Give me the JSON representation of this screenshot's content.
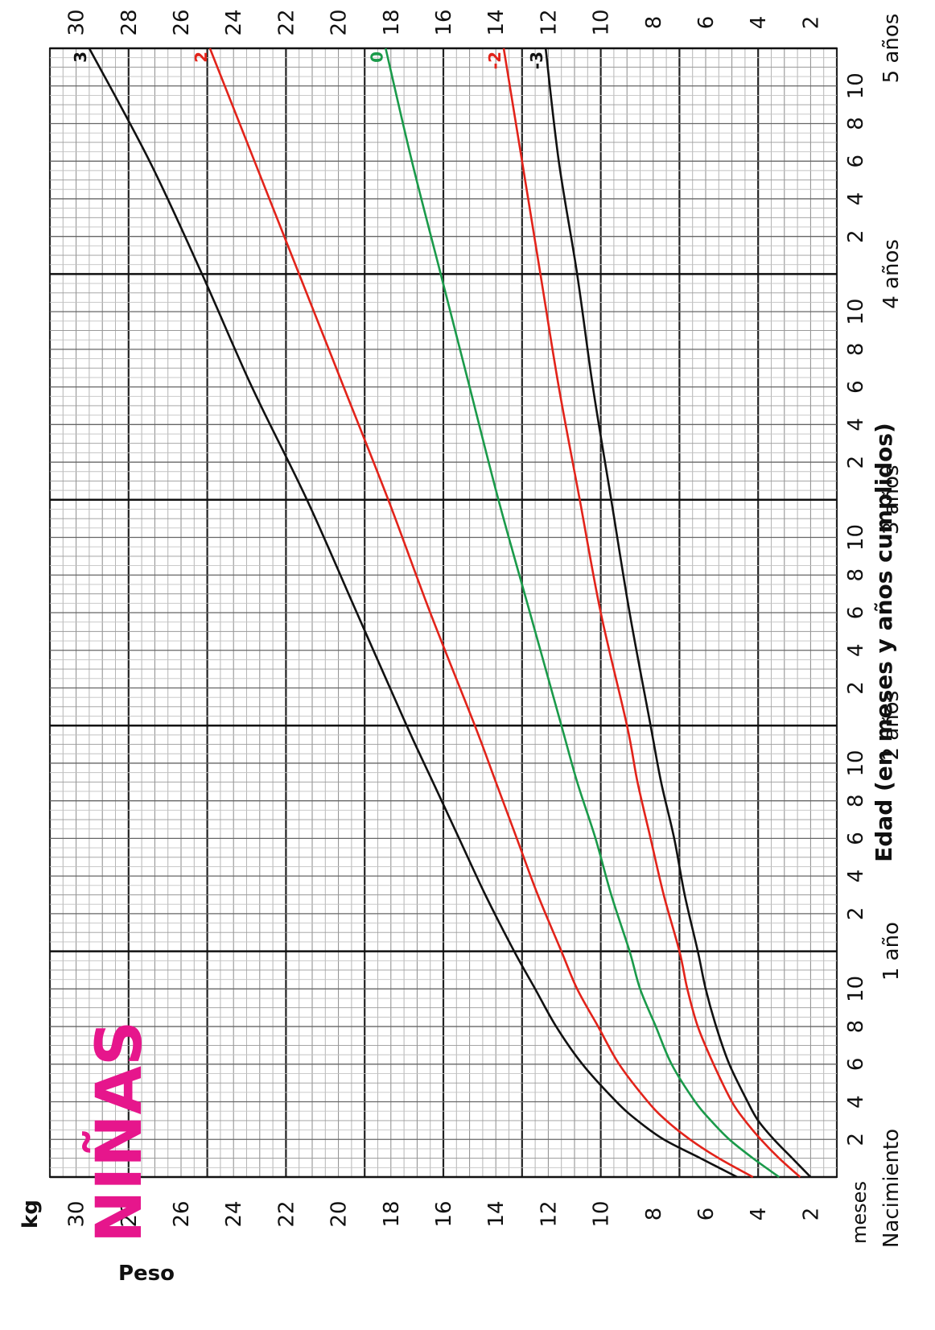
{
  "chart_data": {
    "type": "line",
    "title": "NIÑAS",
    "xlabel": "Edad (en meses y años cumplidos)",
    "ylabel": "Peso",
    "yunit": "kg",
    "x_unit_label": "meses",
    "xlim": [
      0,
      60
    ],
    "ylim": [
      1,
      31
    ],
    "y_ticks": [
      2,
      4,
      6,
      8,
      10,
      12,
      14,
      16,
      18,
      20,
      22,
      24,
      26,
      28,
      30
    ],
    "x_month_ticks": [
      2,
      4,
      6,
      8,
      10
    ],
    "year_labels": [
      {
        "month": 0,
        "label": "Nacimiento"
      },
      {
        "month": 12,
        "label": "1 año"
      },
      {
        "month": 24,
        "label": "2 años"
      },
      {
        "month": 36,
        "label": "3 años"
      },
      {
        "month": 48,
        "label": "4 años"
      },
      {
        "month": 60,
        "label": "5 años"
      }
    ],
    "grid": true,
    "x": [
      0,
      1,
      2,
      3,
      4,
      6,
      8,
      10,
      12,
      15,
      18,
      21,
      24,
      30,
      36,
      42,
      48,
      54,
      60
    ],
    "series": [
      {
        "name": "3",
        "color": "#111111",
        "values": [
          4.8,
          6.2,
          7.6,
          8.6,
          9.4,
          10.7,
          11.7,
          12.5,
          13.3,
          14.4,
          15.4,
          16.4,
          17.4,
          19.3,
          21.2,
          23.3,
          25.2,
          27.2,
          29.5
        ]
      },
      {
        "name": "2",
        "color": "#e2231a",
        "values": [
          4.2,
          5.5,
          6.6,
          7.5,
          8.2,
          9.3,
          10.1,
          10.9,
          11.5,
          12.4,
          13.2,
          14.0,
          14.8,
          16.5,
          18.1,
          19.8,
          21.5,
          23.2,
          24.9
        ]
      },
      {
        "name": "0",
        "color": "#1a9a4a",
        "values": [
          3.2,
          4.2,
          5.1,
          5.8,
          6.4,
          7.3,
          7.9,
          8.5,
          8.9,
          9.6,
          10.2,
          10.9,
          11.5,
          12.7,
          13.9,
          15.0,
          16.1,
          17.2,
          18.2
        ]
      },
      {
        "name": "-2",
        "color": "#e2231a",
        "values": [
          2.4,
          3.2,
          3.9,
          4.5,
          5.0,
          5.7,
          6.3,
          6.7,
          7.0,
          7.6,
          8.1,
          8.6,
          9.0,
          10.0,
          10.8,
          11.6,
          12.3,
          13.0,
          13.7
        ]
      },
      {
        "name": "-3",
        "color": "#111111",
        "values": [
          2.0,
          2.7,
          3.4,
          4.0,
          4.4,
          5.1,
          5.6,
          6.0,
          6.3,
          6.8,
          7.2,
          7.7,
          8.1,
          8.9,
          9.6,
          10.3,
          10.9,
          11.6,
          12.1
        ]
      }
    ]
  }
}
